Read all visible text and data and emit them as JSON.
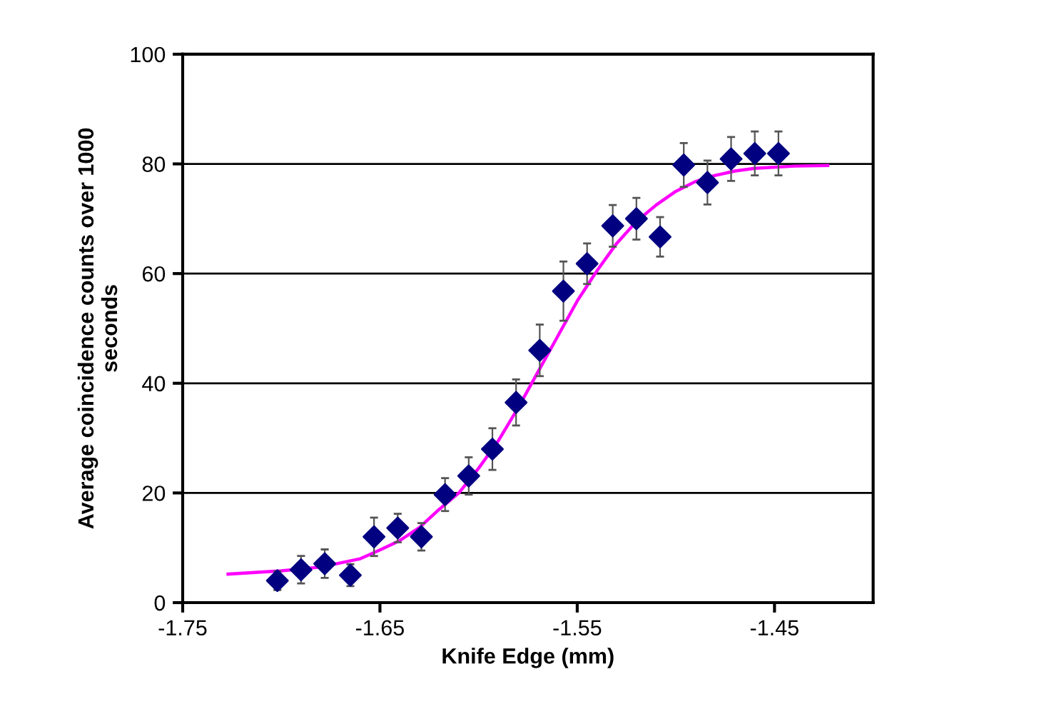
{
  "chart_data": {
    "type": "scatter",
    "xlabel": "Knife Edge (mm)",
    "ylabel": "Average coincidence counts over 1000\nseconds",
    "xlim": [
      -1.75,
      -1.4
    ],
    "xticks": [
      -1.75,
      -1.65,
      -1.55,
      -1.45
    ],
    "ylim": [
      0,
      100
    ],
    "yticks": [
      0,
      20,
      40,
      60,
      80,
      100
    ],
    "grid": "y",
    "legend": false,
    "series": [
      {
        "marker": "diamond",
        "color": "#000080",
        "x": [
          -1.702,
          -1.69,
          -1.678,
          -1.665,
          -1.653,
          -1.641,
          -1.629,
          -1.617,
          -1.605,
          -1.593,
          -1.581,
          -1.569,
          -1.557,
          -1.545,
          -1.532,
          -1.52,
          -1.508,
          -1.496,
          -1.484,
          -1.472,
          -1.46,
          -1.448
        ],
        "values": [
          4.0,
          6.0,
          7.1,
          5.0,
          12.0,
          13.6,
          12.0,
          19.7,
          23.1,
          28.0,
          36.5,
          46.0,
          56.8,
          61.8,
          68.7,
          70.0,
          66.7,
          79.8,
          76.6,
          80.9,
          81.9,
          81.9
        ],
        "errors": [
          1.7,
          2.5,
          2.6,
          2.0,
          3.5,
          2.6,
          2.5,
          3.0,
          3.4,
          3.8,
          4.2,
          4.7,
          5.4,
          3.7,
          3.8,
          3.8,
          3.6,
          4.0,
          4.0,
          4.0,
          4.0,
          4.0
        ]
      },
      {
        "type": "line",
        "marker": "none",
        "line_style": "solid",
        "color": "#ff00ff",
        "x": [
          -1.727,
          -1.7,
          -1.68,
          -1.66,
          -1.65,
          -1.64,
          -1.63,
          -1.62,
          -1.61,
          -1.6,
          -1.59,
          -1.58,
          -1.57,
          -1.56,
          -1.55,
          -1.54,
          -1.53,
          -1.52,
          -1.51,
          -1.5,
          -1.49,
          -1.48,
          -1.47,
          -1.46,
          -1.44,
          -1.423
        ],
        "values": [
          5.2,
          5.8,
          6.5,
          8.0,
          9.6,
          11.3,
          13.7,
          17.0,
          20.0,
          24.5,
          29.5,
          35.5,
          42.0,
          48.5,
          55.0,
          60.5,
          65.5,
          69.5,
          72.5,
          75.0,
          76.8,
          77.9,
          78.7,
          79.2,
          79.6,
          79.7
        ]
      }
    ]
  }
}
